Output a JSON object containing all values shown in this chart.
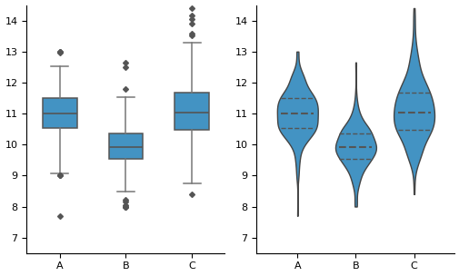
{
  "groups": [
    "A",
    "B",
    "C"
  ],
  "seed": 0,
  "box_color": "#4393c3",
  "box_edge_color": "#555555",
  "whisker_color": "#777777",
  "median_color": "#555555",
  "outlier_marker": "D",
  "outlier_color": "#555555",
  "outlier_size": 3,
  "violin_color": "#4393c3",
  "violin_edge_color": "#444444",
  "ylim": [
    6.5,
    14.5
  ],
  "yticks": [
    7,
    8,
    9,
    10,
    11,
    12,
    13,
    14
  ],
  "fig_width": 5.06,
  "fig_height": 3.04,
  "dpi": 100
}
